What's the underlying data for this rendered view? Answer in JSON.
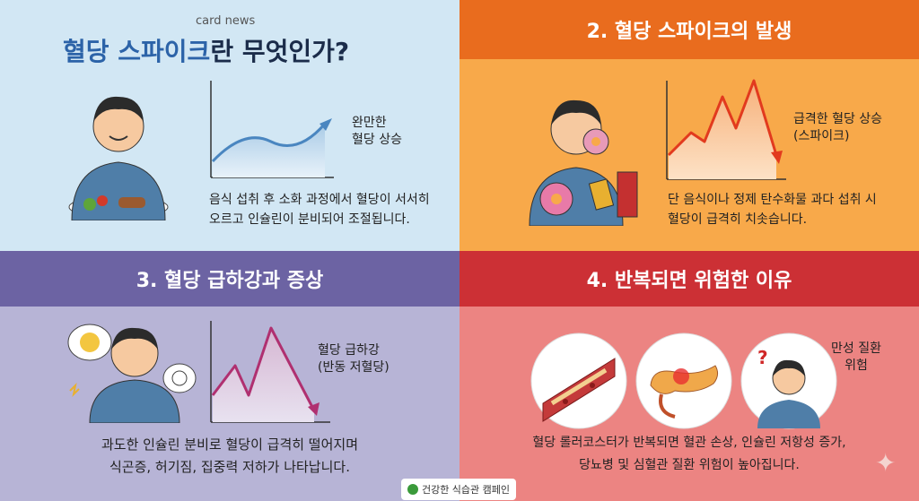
{
  "panel1": {
    "eyebrow": "card news",
    "title_highlight": "혈당 스파이크",
    "title_rest": "란 무엇인가?",
    "chart_label": "완만한\n혈당 상승",
    "description": "음식 섭취 후 소화 과정에서 혈당이 서서히\n오르고 인슐린이 분비되어 조절됩니다."
  },
  "panel2": {
    "title": "2. 혈당 스파이크의 발생",
    "chart_label": "급격한 혈당 상승\n(스파이크)",
    "description": "단 음식이나 정제 탄수화물 과다 섭취 시\n혈당이 급격히 치솟습니다."
  },
  "panel3": {
    "title": "3. 혈당 급하강과 증상",
    "chart_label": "혈당 급하강\n(반동 저혈당)",
    "description": "과도한 인슐린 분비로 혈당이 급격히 떨어지며\n식곤증, 허기짐, 집중력 저하가 나타납니다."
  },
  "panel4": {
    "title": "4. 반복되면 위험한 이유",
    "figure_label": "만성 질환\n위험",
    "description": "혈당 롤러코스터가 반복되면 혈관 손상, 인슐린 저항성 증가,\n당뇨병 및 심혈관 질환 위험이 높아집니다."
  },
  "footer": {
    "text": "건강한 식습관 캠페인"
  },
  "colors": {
    "panel1_bg": "#d2e7f4",
    "panel2_bg": "#f8a94a",
    "panel2_band": "#e96c1e",
    "panel3_bg": "#b7b4d6",
    "panel3_band": "#6c63a3",
    "panel4_bg": "#ec8482",
    "panel4_band": "#cc3035",
    "gentle_curve": "#4a86c0",
    "spike_curve": "#e23a1e",
    "drop_curve": "#b03070"
  },
  "icons": [
    "man-eating-salad-icon",
    "man-eating-donut-icon",
    "tired-man-icon",
    "blood-vessel-icon",
    "pancreas-icon",
    "thinking-man-icon",
    "leaf-icon",
    "sparkle-icon"
  ]
}
